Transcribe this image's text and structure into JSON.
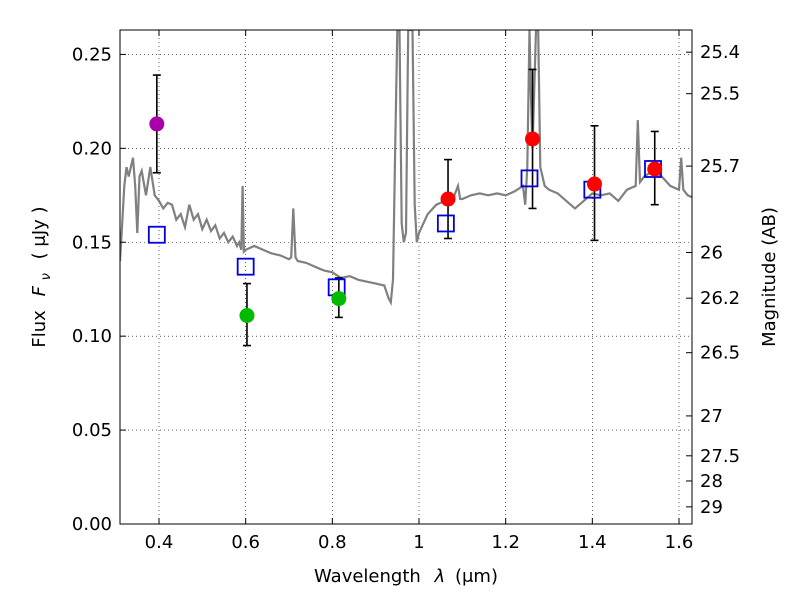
{
  "chart_data": {
    "type": "scatter",
    "xlabel_text": "Wavelength",
    "xlabel_symbol": "λ",
    "xlabel_unit": "(μm)",
    "ylabel_text": "Flux",
    "ylabel_symbol": "F",
    "ylabel_subscript": "ν",
    "ylabel_unit": "( μJy )",
    "y2label": "Magnitude (AB)",
    "xlim": [
      0.31,
      1.63
    ],
    "ylim": [
      0.0,
      0.263
    ],
    "grid": true,
    "x_ticks": [
      {
        "value": 0.4,
        "label": "0.4"
      },
      {
        "value": 0.6,
        "label": "0.6"
      },
      {
        "value": 0.8,
        "label": "0.8"
      },
      {
        "value": 1.0,
        "label": "1"
      },
      {
        "value": 1.2,
        "label": "1.2"
      },
      {
        "value": 1.4,
        "label": "1.4"
      },
      {
        "value": 1.6,
        "label": "1.6"
      }
    ],
    "y_ticks": [
      {
        "value": 0.0,
        "label": "0.00"
      },
      {
        "value": 0.05,
        "label": "0.05"
      },
      {
        "value": 0.1,
        "label": "0.10"
      },
      {
        "value": 0.15,
        "label": "0.15"
      },
      {
        "value": 0.2,
        "label": "0.20"
      },
      {
        "value": 0.25,
        "label": "0.25"
      }
    ],
    "y2_ticks": [
      {
        "mag": 25.4,
        "label": "25.4"
      },
      {
        "mag": 25.5,
        "label": "25.5"
      },
      {
        "mag": 25.7,
        "label": "25.7"
      },
      {
        "mag": 26.0,
        "label": "26"
      },
      {
        "mag": 26.2,
        "label": "26.2"
      },
      {
        "mag": 26.5,
        "label": "26.5"
      },
      {
        "mag": 27.0,
        "label": "27"
      },
      {
        "mag": 27.5,
        "label": "27.5"
      },
      {
        "mag": 28.0,
        "label": "28"
      },
      {
        "mag": 29.0,
        "label": "29"
      }
    ],
    "observed_points": [
      {
        "x": 0.395,
        "y": 0.213,
        "err_low": 0.187,
        "err_high": 0.239,
        "color": "#aa00aa"
      },
      {
        "x": 0.603,
        "y": 0.111,
        "err_low": 0.095,
        "err_high": 0.128,
        "color": "#00bb00"
      },
      {
        "x": 0.815,
        "y": 0.12,
        "err_low": 0.11,
        "err_high": 0.131,
        "color": "#00bb00"
      },
      {
        "x": 1.067,
        "y": 0.173,
        "err_low": 0.152,
        "err_high": 0.194,
        "color": "#ff0000"
      },
      {
        "x": 1.262,
        "y": 0.205,
        "err_low": 0.168,
        "err_high": 0.242,
        "color": "#ff0000"
      },
      {
        "x": 1.405,
        "y": 0.181,
        "err_low": 0.151,
        "err_high": 0.212,
        "color": "#ff0000"
      },
      {
        "x": 1.544,
        "y": 0.189,
        "err_low": 0.17,
        "err_high": 0.209,
        "color": "#ff0000"
      }
    ],
    "model_points": [
      {
        "x": 0.395,
        "y": 0.154
      },
      {
        "x": 0.6,
        "y": 0.137
      },
      {
        "x": 0.81,
        "y": 0.126
      },
      {
        "x": 1.062,
        "y": 0.16
      },
      {
        "x": 1.255,
        "y": 0.184
      },
      {
        "x": 1.4,
        "y": 0.178
      },
      {
        "x": 1.54,
        "y": 0.189
      }
    ],
    "model_spectrum": [
      [
        0.31,
        0.14
      ],
      [
        0.315,
        0.16
      ],
      [
        0.32,
        0.18
      ],
      [
        0.325,
        0.19
      ],
      [
        0.33,
        0.185
      ],
      [
        0.34,
        0.195
      ],
      [
        0.345,
        0.18
      ],
      [
        0.35,
        0.155
      ],
      [
        0.355,
        0.185
      ],
      [
        0.36,
        0.188
      ],
      [
        0.37,
        0.175
      ],
      [
        0.38,
        0.19
      ],
      [
        0.39,
        0.175
      ],
      [
        0.4,
        0.172
      ],
      [
        0.41,
        0.168
      ],
      [
        0.42,
        0.171
      ],
      [
        0.43,
        0.17
      ],
      [
        0.44,
        0.162
      ],
      [
        0.45,
        0.165
      ],
      [
        0.46,
        0.158
      ],
      [
        0.47,
        0.17
      ],
      [
        0.48,
        0.162
      ],
      [
        0.49,
        0.165
      ],
      [
        0.5,
        0.157
      ],
      [
        0.51,
        0.162
      ],
      [
        0.52,
        0.156
      ],
      [
        0.53,
        0.159
      ],
      [
        0.54,
        0.152
      ],
      [
        0.55,
        0.155
      ],
      [
        0.56,
        0.15
      ],
      [
        0.57,
        0.153
      ],
      [
        0.58,
        0.148
      ],
      [
        0.585,
        0.15
      ],
      [
        0.59,
        0.146
      ],
      [
        0.593,
        0.18
      ],
      [
        0.596,
        0.145
      ],
      [
        0.6,
        0.146
      ],
      [
        0.62,
        0.148
      ],
      [
        0.64,
        0.146
      ],
      [
        0.66,
        0.144
      ],
      [
        0.68,
        0.143
      ],
      [
        0.7,
        0.141
      ],
      [
        0.705,
        0.142
      ],
      [
        0.71,
        0.168
      ],
      [
        0.715,
        0.142
      ],
      [
        0.72,
        0.14
      ],
      [
        0.74,
        0.139
      ],
      [
        0.76,
        0.137
      ],
      [
        0.78,
        0.135
      ],
      [
        0.8,
        0.134
      ],
      [
        0.82,
        0.131
      ],
      [
        0.84,
        0.132
      ],
      [
        0.86,
        0.13
      ],
      [
        0.88,
        0.129
      ],
      [
        0.9,
        0.128
      ],
      [
        0.92,
        0.127
      ],
      [
        0.93,
        0.12
      ],
      [
        0.935,
        0.118
      ],
      [
        0.94,
        0.13
      ],
      [
        0.945,
        0.2
      ],
      [
        0.95,
        0.263
      ],
      [
        0.955,
        0.263
      ],
      [
        0.96,
        0.16
      ],
      [
        0.965,
        0.15
      ],
      [
        0.97,
        0.155
      ],
      [
        0.975,
        0.263
      ],
      [
        0.985,
        0.263
      ],
      [
        0.99,
        0.17
      ],
      [
        0.995,
        0.15
      ],
      [
        1.0,
        0.155
      ],
      [
        1.02,
        0.165
      ],
      [
        1.04,
        0.17
      ],
      [
        1.06,
        0.172
      ],
      [
        1.08,
        0.174
      ],
      [
        1.09,
        0.18
      ],
      [
        1.095,
        0.173
      ],
      [
        1.1,
        0.173
      ],
      [
        1.12,
        0.175
      ],
      [
        1.14,
        0.176
      ],
      [
        1.16,
        0.175
      ],
      [
        1.18,
        0.176
      ],
      [
        1.2,
        0.175
      ],
      [
        1.22,
        0.177
      ],
      [
        1.24,
        0.18
      ],
      [
        1.245,
        0.17
      ],
      [
        1.25,
        0.19
      ],
      [
        1.255,
        0.263
      ],
      [
        1.258,
        0.23
      ],
      [
        1.262,
        0.2
      ],
      [
        1.27,
        0.263
      ],
      [
        1.275,
        0.263
      ],
      [
        1.28,
        0.19
      ],
      [
        1.29,
        0.18
      ],
      [
        1.3,
        0.178
      ],
      [
        1.32,
        0.176
      ],
      [
        1.34,
        0.172
      ],
      [
        1.36,
        0.168
      ],
      [
        1.38,
        0.172
      ],
      [
        1.4,
        0.176
      ],
      [
        1.42,
        0.175
      ],
      [
        1.44,
        0.176
      ],
      [
        1.46,
        0.172
      ],
      [
        1.48,
        0.178
      ],
      [
        1.5,
        0.18
      ],
      [
        1.505,
        0.215
      ],
      [
        1.51,
        0.182
      ],
      [
        1.52,
        0.185
      ],
      [
        1.54,
        0.188
      ],
      [
        1.56,
        0.185
      ],
      [
        1.58,
        0.18
      ],
      [
        1.6,
        0.178
      ],
      [
        1.605,
        0.195
      ],
      [
        1.61,
        0.178
      ],
      [
        1.62,
        0.175
      ],
      [
        1.63,
        0.174
      ]
    ],
    "colors": {
      "model_line": "#808080",
      "model_marker": "#0000dd",
      "error_bar": "#000000",
      "frame": "#000000"
    }
  }
}
